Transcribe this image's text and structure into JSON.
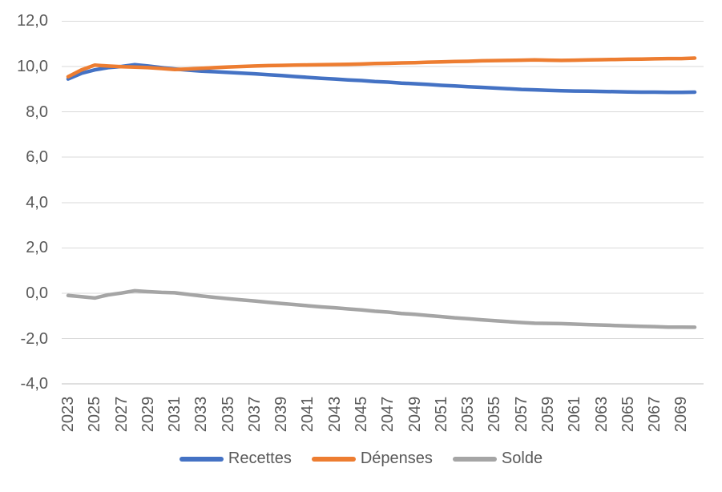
{
  "chart_data": {
    "type": "line",
    "title": "",
    "xlabel": "",
    "ylabel": "",
    "decimal_style": "comma",
    "grid": true,
    "legend_position": "bottom",
    "ylim": [
      -4,
      12
    ],
    "gridline_color": "#D9D9D9",
    "axis_line_color": "#BFBFBF",
    "tick_text_color": "#595959",
    "y_tick_values": [
      12,
      10,
      8,
      6,
      4,
      2,
      0,
      -2,
      -4
    ],
    "y_tick_labels": [
      "12,0",
      "10,0",
      "8,0",
      "6,0",
      "4,0",
      "2,0",
      "0,0",
      "-2,0",
      "-4,0"
    ],
    "x_tick_labels": [
      "2023",
      "2025",
      "2027",
      "2029",
      "2031",
      "2033",
      "2035",
      "2037",
      "2039",
      "2041",
      "2043",
      "2045",
      "2047",
      "2049",
      "2051",
      "2053",
      "2055",
      "2057",
      "2059",
      "2061",
      "2063",
      "2065",
      "2067",
      "2069"
    ],
    "x": [
      2023,
      2024,
      2025,
      2026,
      2027,
      2028,
      2029,
      2030,
      2031,
      2032,
      2033,
      2034,
      2035,
      2036,
      2037,
      2038,
      2039,
      2040,
      2041,
      2042,
      2043,
      2044,
      2045,
      2046,
      2047,
      2048,
      2049,
      2050,
      2051,
      2052,
      2053,
      2054,
      2055,
      2056,
      2057,
      2058,
      2059,
      2060,
      2061,
      2062,
      2063,
      2064,
      2065,
      2066,
      2067,
      2068,
      2069,
      2070
    ],
    "series": [
      {
        "name": "Recettes",
        "color": "#4472C4",
        "values": [
          9.45,
          9.7,
          9.85,
          9.95,
          10.0,
          10.08,
          10.02,
          9.95,
          9.89,
          9.84,
          9.8,
          9.77,
          9.74,
          9.71,
          9.68,
          9.64,
          9.6,
          9.56,
          9.52,
          9.48,
          9.45,
          9.41,
          9.38,
          9.34,
          9.31,
          9.27,
          9.24,
          9.21,
          9.17,
          9.14,
          9.11,
          9.08,
          9.05,
          9.02,
          8.99,
          8.97,
          8.95,
          8.93,
          8.92,
          8.91,
          8.9,
          8.89,
          8.88,
          8.87,
          8.87,
          8.86,
          8.86,
          8.87
        ]
      },
      {
        "name": "Dépenses",
        "color": "#ED7D31",
        "values": [
          9.55,
          9.85,
          10.06,
          10.02,
          9.99,
          9.97,
          9.95,
          9.91,
          9.87,
          9.89,
          9.92,
          9.95,
          9.98,
          10.0,
          10.02,
          10.04,
          10.05,
          10.06,
          10.07,
          10.08,
          10.09,
          10.1,
          10.11,
          10.13,
          10.14,
          10.16,
          10.17,
          10.19,
          10.2,
          10.22,
          10.23,
          10.25,
          10.26,
          10.27,
          10.28,
          10.29,
          10.28,
          10.27,
          10.28,
          10.29,
          10.3,
          10.31,
          10.32,
          10.33,
          10.34,
          10.35,
          10.35,
          10.37
        ]
      },
      {
        "name": "Solde",
        "color": "#A5A5A5",
        "values": [
          -0.1,
          -0.15,
          -0.21,
          -0.07,
          0.01,
          0.11,
          0.07,
          0.04,
          0.02,
          -0.05,
          -0.12,
          -0.18,
          -0.24,
          -0.29,
          -0.34,
          -0.4,
          -0.45,
          -0.5,
          -0.55,
          -0.6,
          -0.64,
          -0.69,
          -0.73,
          -0.79,
          -0.83,
          -0.89,
          -0.93,
          -0.98,
          -1.03,
          -1.08,
          -1.12,
          -1.17,
          -1.21,
          -1.25,
          -1.29,
          -1.32,
          -1.33,
          -1.34,
          -1.36,
          -1.38,
          -1.4,
          -1.42,
          -1.44,
          -1.46,
          -1.47,
          -1.49,
          -1.49,
          -1.5
        ]
      }
    ]
  }
}
